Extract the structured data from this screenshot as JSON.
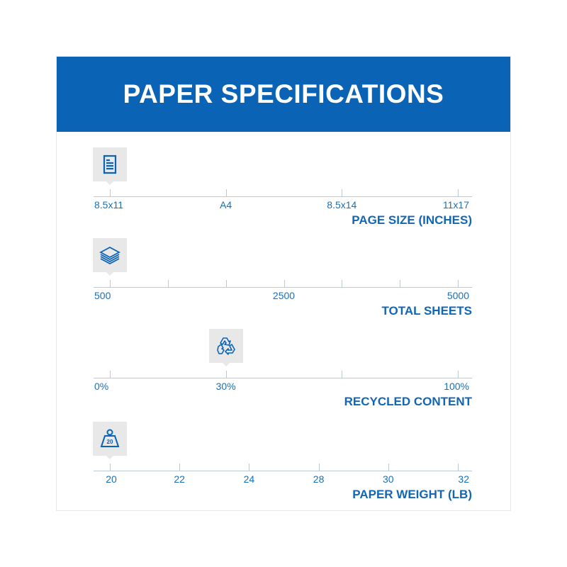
{
  "title": "PAPER SPECIFICATIONS",
  "accent_color": "#0b63b5",
  "specs": [
    {
      "title": "PAGE SIZE (INCHES)",
      "icon": "document-icon",
      "ticks": [
        "8.5x11",
        "A4",
        "8.5x14",
        "11x17"
      ],
      "selected_index": 0
    },
    {
      "title": "TOTAL SHEETS",
      "icon": "paper-stack-icon",
      "ticks": [
        "500",
        "",
        "",
        "2500",
        "",
        "",
        "5000"
      ],
      "selected_index": 0
    },
    {
      "title": "RECYCLED CONTENT",
      "icon": "recycle-icon",
      "ticks": [
        "0%",
        "30%",
        "",
        "100%"
      ],
      "selected_index": 1
    },
    {
      "title": "PAPER WEIGHT (LB)",
      "icon": "weight-icon",
      "icon_text": "20",
      "ticks": [
        "20",
        "22",
        "24",
        "28",
        "30",
        "32"
      ],
      "selected_index": 0
    }
  ]
}
